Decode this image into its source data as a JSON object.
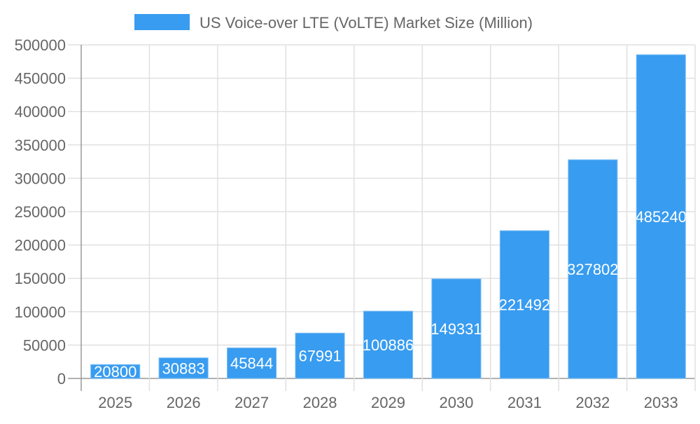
{
  "chart_data": {
    "type": "bar",
    "categories": [
      "2025",
      "2026",
      "2027",
      "2028",
      "2029",
      "2030",
      "2031",
      "2032",
      "2033"
    ],
    "series": [
      {
        "name": "US Voice-over LTE (VoLTE) Market Size (Million)",
        "values": [
          20800,
          30883,
          45844,
          67991,
          100886,
          149331,
          221492,
          327802,
          485240
        ]
      }
    ],
    "ylim": [
      0,
      500000
    ],
    "yticks": [
      0,
      50000,
      100000,
      150000,
      200000,
      250000,
      300000,
      350000,
      400000,
      450000,
      500000
    ],
    "grid": true,
    "legend_placement": "top",
    "data_labels": true,
    "colors": {
      "bar": "#389cf0",
      "bar_border": "#7fbff5",
      "grid": "#e0e0e0",
      "axis": "#999999",
      "text": "#666666",
      "label": "#ffffff"
    }
  }
}
